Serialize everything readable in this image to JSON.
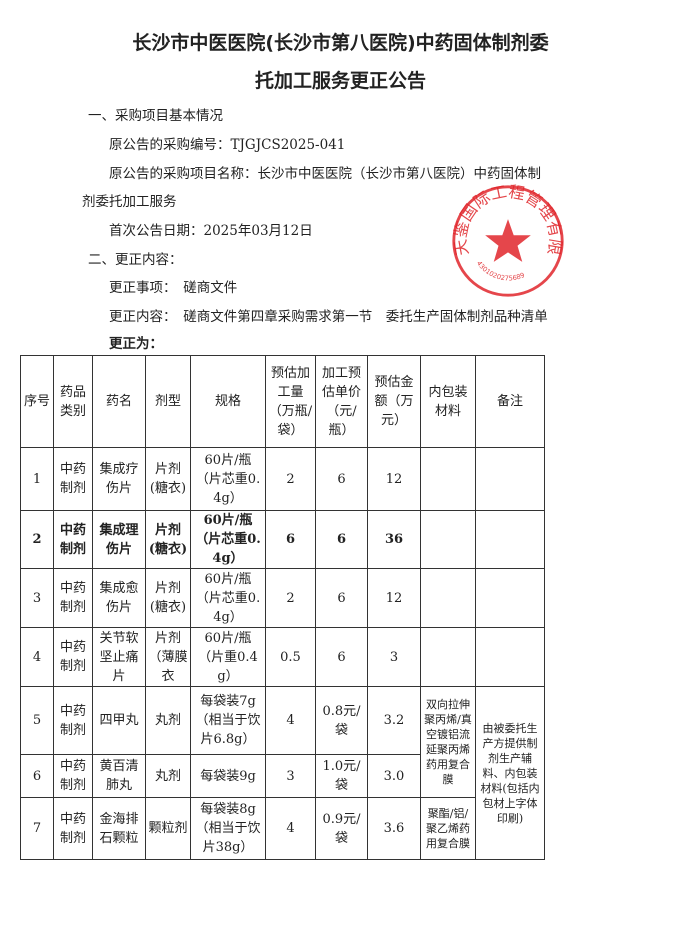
{
  "title": [
    "长沙市中医医院(长沙市第八医院)中药固体制剂委",
    "托加工服务更正公告"
  ],
  "section1": {
    "heading": "一、采购项目基本情况",
    "code": "原公告的采购编号：TJGJCS2025-041",
    "name1": "原公告的采购项目名称：长沙市中医医院（长沙市第八医院）中药固体制",
    "name2": "剂委托加工服务",
    "date": "首次公告日期：2025年03月12日"
  },
  "section2": {
    "heading": "二、更正内容：",
    "item": "更正事项：　磋商文件",
    "content": "更正内容：　磋商文件第四章采购需求第一节　委托生产固体制剂品种清单",
    "correct": "更正为："
  },
  "table": {
    "headers": [
      "序号",
      "药品类别",
      "药名",
      "剂型",
      "规格",
      "预估加工量（万瓶/袋）",
      "加工预估单价（元/瓶）",
      "预估金额（万元）",
      "内包装材料",
      "备注"
    ],
    "rows": [
      [
        "1",
        "中药制剂",
        "集成疗伤片",
        "片剂(糖衣)",
        "60片/瓶（片芯重0.4g）",
        "2",
        "6",
        "12"
      ],
      [
        "2",
        "中药制剂",
        "集成理伤片",
        "片剂(糖衣)",
        "60片/瓶（片芯重0.4g）",
        "6",
        "6",
        "36"
      ],
      [
        "3",
        "中药制剂",
        "集成愈伤片",
        "片剂(糖衣)",
        "60片/瓶（片芯重0.4g）",
        "2",
        "6",
        "12"
      ],
      [
        "4",
        "中药制剂",
        "关节软坚止痛片",
        "片剂（薄膜衣",
        "60片/瓶（片重0.4g）",
        "0.5",
        "6",
        "3"
      ],
      [
        "5",
        "中药制剂",
        "四甲丸",
        "丸剂",
        "每袋装7g（相当于饮片6.8g）",
        "4",
        "0.8元/袋",
        "3.2"
      ],
      [
        "6",
        "中药制剂",
        "黄百清肺丸",
        "丸剂",
        "每袋装9g",
        "3",
        "1.0元/袋",
        "3.0"
      ],
      [
        "7",
        "中药制剂",
        "金海排石颗粒",
        "颗粒剂",
        "每袋装8g（相当于饮片38g）",
        "4",
        "0.9元/袋",
        "3.6"
      ]
    ],
    "packaging_5_6": "双向拉伸聚丙烯/真空镀铝流延聚丙烯药用复合膜",
    "packaging_7": "聚酯/铝/聚乙烯药用复合膜",
    "remark_5_7": "由被委托生产方提供制剂生产辅料、内包装材料(包括内包材上字体印刷)"
  },
  "stamp": {
    "text": "天鉴国际工程管理有限公司",
    "number": "4301020275689",
    "color": "#e0262b"
  }
}
